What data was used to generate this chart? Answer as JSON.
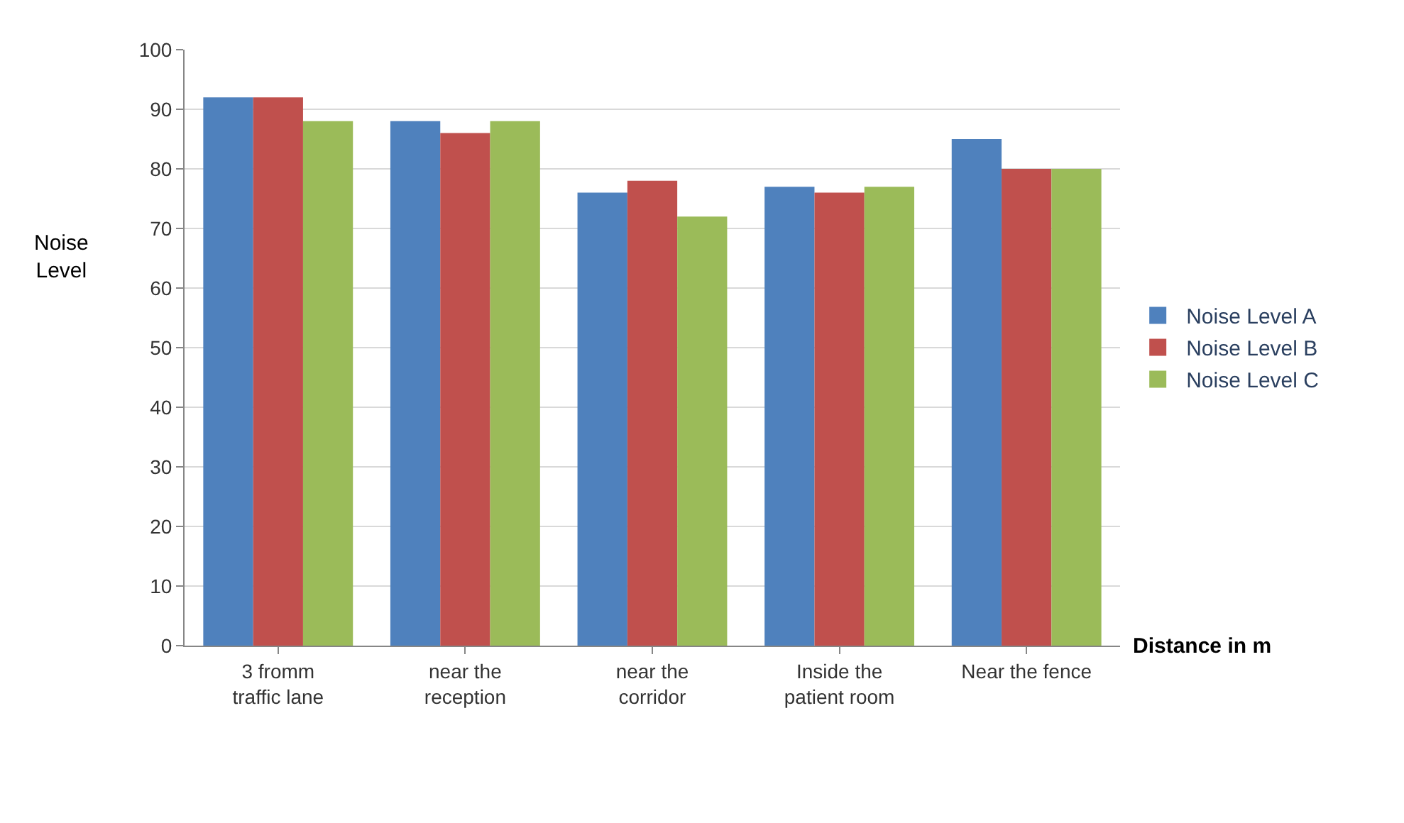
{
  "chart_data": {
    "type": "bar",
    "categories": [
      "3 fromm traffic lane",
      "near the reception",
      "near the corridor",
      "Inside the patient room",
      "Near the fence"
    ],
    "series": [
      {
        "name": "Noise Level A",
        "color": "#4f81bd",
        "values": [
          92,
          88,
          76,
          77,
          85
        ]
      },
      {
        "name": "Noise Level B",
        "color": "#c0504d",
        "values": [
          92,
          86,
          78,
          76,
          80
        ]
      },
      {
        "name": "Noise Level C",
        "color": "#9bbb59",
        "values": [
          88,
          88,
          72,
          77,
          80
        ]
      }
    ],
    "xlabel": "Distance in m",
    "ylabel": "Noise Level",
    "ylim": [
      0,
      100
    ],
    "yticks": [
      0,
      10,
      20,
      30,
      40,
      50,
      60,
      70,
      80,
      90,
      100
    ],
    "grid": "y",
    "legend": "right"
  }
}
